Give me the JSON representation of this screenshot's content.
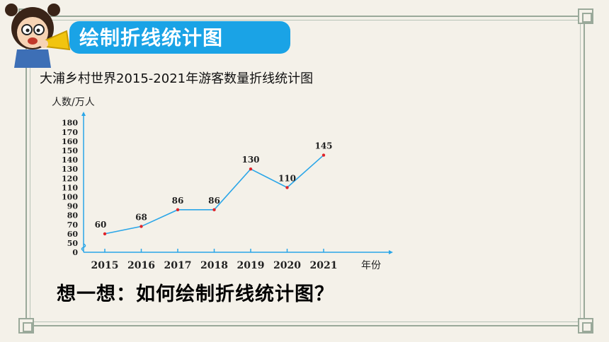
{
  "header": {
    "banner_title": "绘制折线统计图"
  },
  "question_text": "想一想：如何绘制折线统计图？",
  "colors": {
    "banner": "#1aa3e6",
    "line": "#2aa6e8",
    "points": "#e0242a",
    "axis": "#2aa6e8",
    "frame": "#9aa99a"
  },
  "chart_data": {
    "type": "line",
    "title": "大浦乡村世界2015-2021年游客数量折线统计图",
    "ylabel": "人数/万人",
    "xlabel": "年份",
    "categories": [
      "2015",
      "2016",
      "2017",
      "2018",
      "2019",
      "2020",
      "2021"
    ],
    "series": [
      {
        "values": [
          60,
          68,
          86,
          86,
          130,
          110,
          145
        ]
      }
    ],
    "value_labels": [
      "60",
      "68",
      "86",
      "86",
      "130",
      "110",
      "145"
    ],
    "y_ticks": [
      "0",
      "50",
      "60",
      "70",
      "80",
      "90",
      "100",
      "110",
      "120",
      "130",
      "140",
      "150",
      "160",
      "170",
      "180"
    ],
    "ylim": [
      50,
      180
    ],
    "axis_break": true,
    "grid": false
  }
}
